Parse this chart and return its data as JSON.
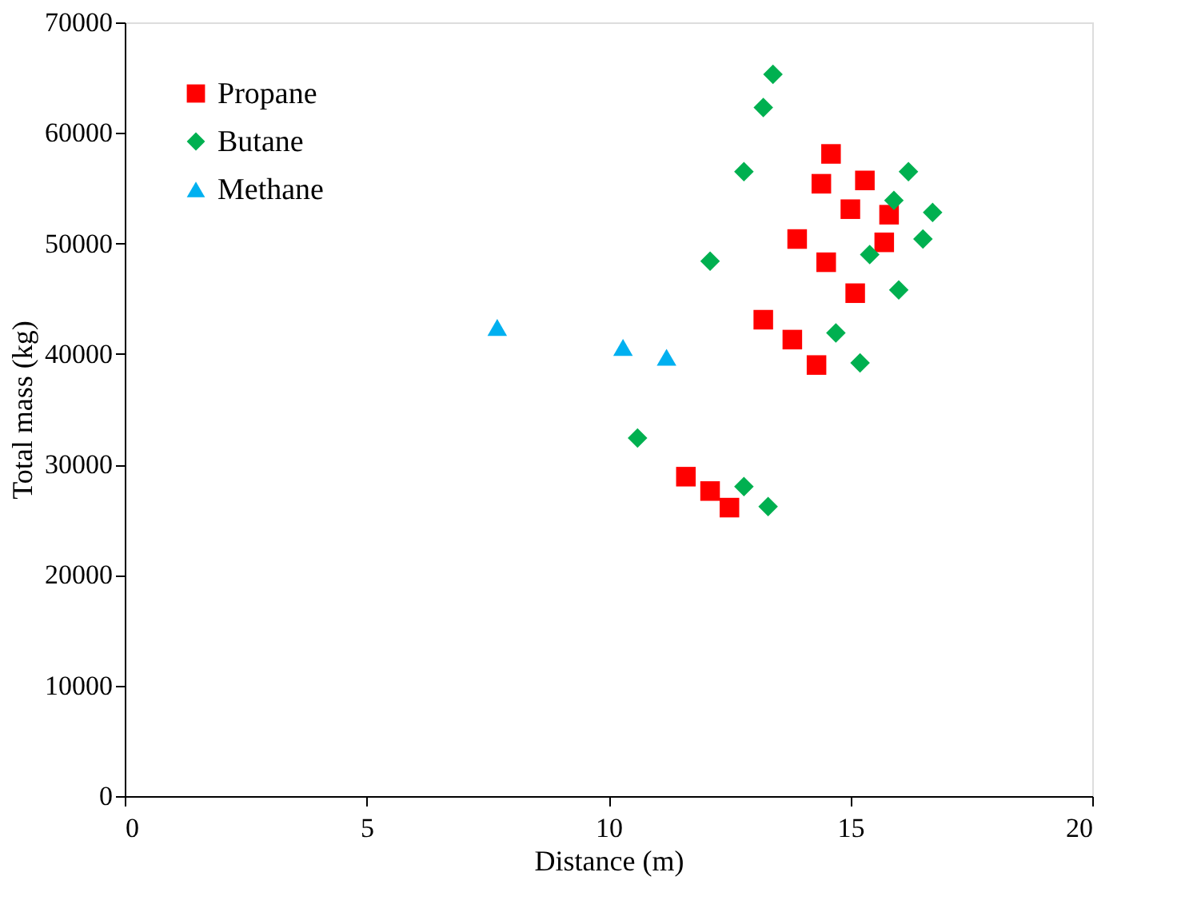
{
  "chart_data": {
    "type": "scatter",
    "xlabel": "Distance (m)",
    "ylabel": "Total mass (kg)",
    "xlim": [
      0,
      20
    ],
    "xticks": [
      0,
      5,
      10,
      15,
      20
    ],
    "ylim": [
      0,
      70000
    ],
    "yticks": [
      0,
      10000,
      20000,
      30000,
      40000,
      50000,
      60000,
      70000
    ],
    "grid": false,
    "legend": "top left",
    "series": [
      {
        "name": "Propane",
        "color": "#ff0000",
        "marker": "square",
        "x": [
          11.6,
          12.1,
          12.5,
          13.2,
          13.8,
          14.3,
          13.9,
          14.5,
          14.4,
          14.6,
          15.0,
          15.3,
          15.1,
          15.7,
          15.8
        ],
        "values": [
          28900,
          27600,
          26100,
          43100,
          41300,
          39000,
          50400,
          48300,
          55400,
          58100,
          53100,
          55700,
          45500,
          50100,
          52600
        ]
      },
      {
        "name": "Butane",
        "color": "#00b050",
        "marker": "diamond",
        "x": [
          13.4,
          13.2,
          12.8,
          12.1,
          10.6,
          12.8,
          13.3,
          14.7,
          15.2,
          15.4,
          15.9,
          16.2,
          16.7,
          16.5,
          16.0
        ],
        "values": [
          65300,
          62300,
          56500,
          48400,
          32400,
          28000,
          26200,
          41900,
          39200,
          49000,
          53900,
          56500,
          52800,
          50400,
          45800
        ]
      },
      {
        "name": "Methane",
        "color": "#00b0f0",
        "marker": "triangle",
        "x": [
          7.7,
          10.3,
          11.2
        ],
        "values": [
          42400,
          40600,
          39700
        ]
      }
    ]
  }
}
